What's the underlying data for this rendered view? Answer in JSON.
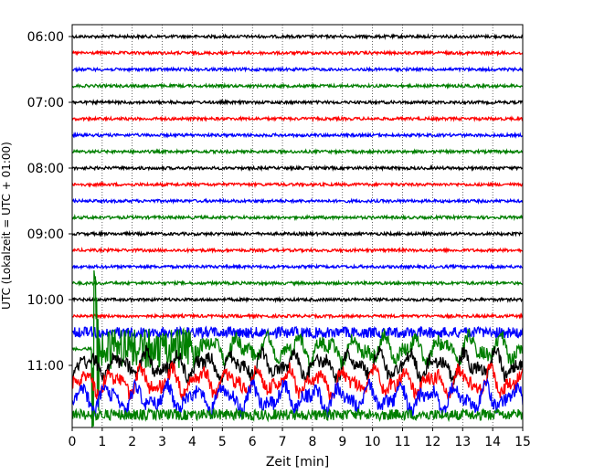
{
  "chart_data": {
    "type": "line",
    "title": "",
    "xlabel": "Zeit  [min]",
    "ylabel": "UTC (Lokalzeit = UTC + 01:00)",
    "xlim": [
      0,
      15
    ],
    "xticks": [
      0,
      1,
      2,
      3,
      4,
      5,
      6,
      7,
      8,
      9,
      10,
      11,
      12,
      13,
      14,
      15
    ],
    "ytick_labels": [
      "06:00",
      "07:00",
      "08:00",
      "09:00",
      "10:00",
      "11:00"
    ],
    "grid": "vertical dotted at each minute",
    "trace_interval_minutes": 15,
    "colors": [
      "#000000",
      "#ff0000",
      "#0000ff",
      "#007f00"
    ],
    "traces": [
      {
        "start": "06:00",
        "color": "#000000",
        "amplitude": "low"
      },
      {
        "start": "06:15",
        "color": "#ff0000",
        "amplitude": "low"
      },
      {
        "start": "06:30",
        "color": "#0000ff",
        "amplitude": "low"
      },
      {
        "start": "06:45",
        "color": "#007f00",
        "amplitude": "low"
      },
      {
        "start": "07:00",
        "color": "#000000",
        "amplitude": "low"
      },
      {
        "start": "07:15",
        "color": "#ff0000",
        "amplitude": "low"
      },
      {
        "start": "07:30",
        "color": "#0000ff",
        "amplitude": "low"
      },
      {
        "start": "07:45",
        "color": "#007f00",
        "amplitude": "low"
      },
      {
        "start": "08:00",
        "color": "#000000",
        "amplitude": "low"
      },
      {
        "start": "08:15",
        "color": "#ff0000",
        "amplitude": "low"
      },
      {
        "start": "08:30",
        "color": "#0000ff",
        "amplitude": "low"
      },
      {
        "start": "08:45",
        "color": "#007f00",
        "amplitude": "low"
      },
      {
        "start": "09:00",
        "color": "#000000",
        "amplitude": "low"
      },
      {
        "start": "09:15",
        "color": "#ff0000",
        "amplitude": "low"
      },
      {
        "start": "09:30",
        "color": "#0000ff",
        "amplitude": "low"
      },
      {
        "start": "09:45",
        "color": "#007f00",
        "amplitude": "low"
      },
      {
        "start": "10:00",
        "color": "#000000",
        "amplitude": "low"
      },
      {
        "start": "10:15",
        "color": "#ff0000",
        "amplitude": "low"
      },
      {
        "start": "10:30",
        "color": "#0000ff",
        "amplitude": "medium"
      },
      {
        "start": "10:45",
        "color": "#007f00",
        "amplitude": "high",
        "event_onset_min": 0.65
      },
      {
        "start": "11:00",
        "color": "#000000",
        "amplitude": "high"
      },
      {
        "start": "11:15",
        "color": "#ff0000",
        "amplitude": "high"
      },
      {
        "start": "11:30",
        "color": "#0000ff",
        "amplitude": "high"
      },
      {
        "start": "11:45",
        "color": "#007f00",
        "amplitude": "medium"
      }
    ]
  }
}
